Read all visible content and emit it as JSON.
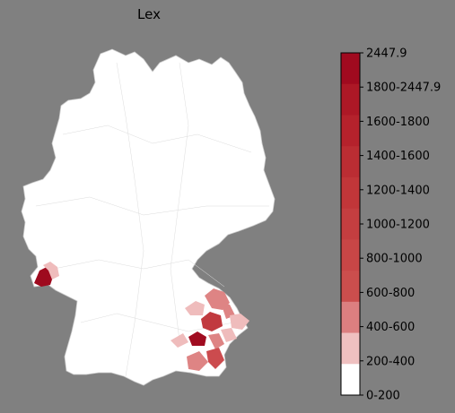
{
  "map": {
    "title": "Lex",
    "base_color": "#ffffff",
    "border_color": "#c8c8c8",
    "background_color": "#808080",
    "highlighted_regions": [
      {
        "name": "",
        "class": "1800-2447.9",
        "color": "#9e0a1e"
      },
      {
        "name": "",
        "class": "1800-2447.9",
        "color": "#a00c20"
      },
      {
        "name": "",
        "class": "1000-1200",
        "color": "#c13a3f"
      },
      {
        "name": "",
        "class": "800-1000",
        "color": "#cc4b4e"
      },
      {
        "name": "",
        "class": "400-600",
        "color": "#de8484"
      },
      {
        "name": "",
        "class": "200-400",
        "color": "#efbcbc"
      }
    ]
  },
  "colorbar": {
    "max_label": "2447.9",
    "labels": [
      "1800-2447.9",
      "1600-1800",
      "1400-1600",
      "1200-1400",
      "1000-1200",
      "800-1000",
      "600-800",
      "400-600",
      "200-400",
      "0-200"
    ],
    "colors": [
      "#a00a1f",
      "#ad1826",
      "#b5222c",
      "#bb2d33",
      "#c13639",
      "#c43e40",
      "#c84646",
      "#cb4e4d",
      "#dc7f80",
      "#efc0c0",
      "#ffffff"
    ]
  }
}
